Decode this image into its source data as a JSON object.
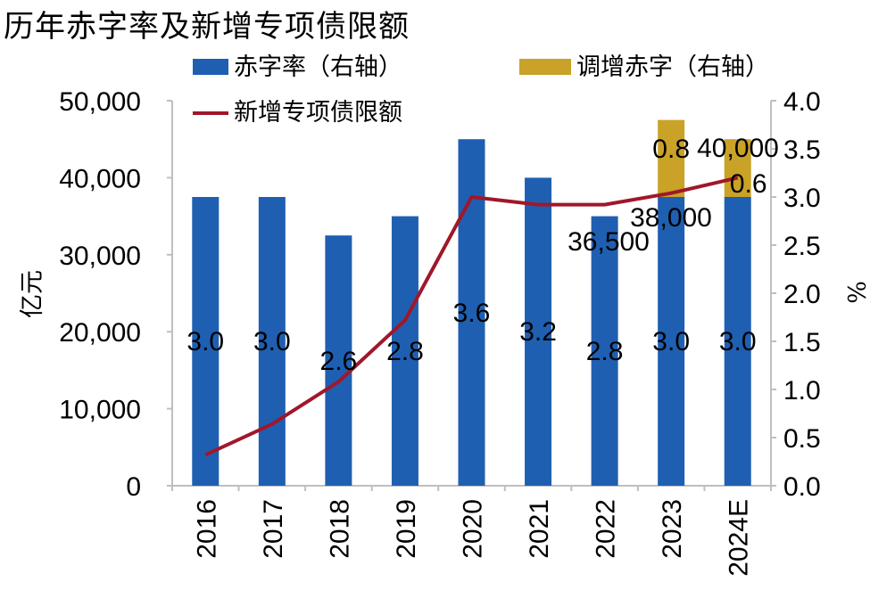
{
  "title": "历年赤字率及新增专项债限额",
  "legend": {
    "deficit": "赤字率（右轴）",
    "adjust": "调增赤字（右轴）",
    "bond": "新增专项债限额"
  },
  "colors": {
    "deficit": "#1f5fb2",
    "adjust": "#c9a227",
    "bond": "#a0172a",
    "axis": "#bfbfbf"
  },
  "chart_data": {
    "type": "bar+line",
    "title": "历年赤字率及新增专项债限额",
    "categories": [
      "2016",
      "2017",
      "2018",
      "2019",
      "2020",
      "2021",
      "2022",
      "2023",
      "2024E"
    ],
    "y_left": {
      "label": "亿元",
      "min": 0,
      "max": 50000,
      "ticks": [
        0,
        10000,
        20000,
        30000,
        40000,
        50000
      ],
      "tick_labels": [
        "0",
        "10,000",
        "20,000",
        "30,000",
        "40,000",
        "50,000"
      ]
    },
    "y_right": {
      "label": "%",
      "min": 0,
      "max": 4,
      "ticks": [
        0,
        0.5,
        1,
        1.5,
        2,
        2.5,
        3,
        3.5,
        4
      ],
      "tick_labels": [
        "0.0",
        "0.5",
        "1.0",
        "1.5",
        "2.0",
        "2.5",
        "3.0",
        "3.5",
        "4.0"
      ]
    },
    "series": [
      {
        "name": "赤字率（右轴）",
        "type": "bar",
        "axis": "right",
        "values": [
          3.0,
          3.0,
          2.6,
          2.8,
          3.6,
          3.2,
          2.8,
          3.0,
          3.0
        ],
        "labels": [
          "3.0",
          "3.0",
          "2.6",
          "2.8",
          "3.6",
          "3.2",
          "2.8",
          "3.0",
          "3.0"
        ]
      },
      {
        "name": "调增赤字（右轴）",
        "type": "stacked-bar",
        "axis": "right",
        "values": [
          0,
          0,
          0,
          0,
          0,
          0,
          0,
          0.8,
          0.6
        ],
        "labels": [
          "",
          "",
          "",
          "",
          "",
          "",
          "",
          "0.8",
          "0.6"
        ]
      },
      {
        "name": "新增专项债限额",
        "type": "line",
        "axis": "left",
        "values": [
          4000,
          8000,
          13500,
          21500,
          37500,
          36500,
          36500,
          38000,
          40000
        ],
        "labels": [
          "",
          "",
          "",
          "",
          "",
          "",
          "36,500",
          "38,000",
          "40,000"
        ]
      }
    ]
  }
}
